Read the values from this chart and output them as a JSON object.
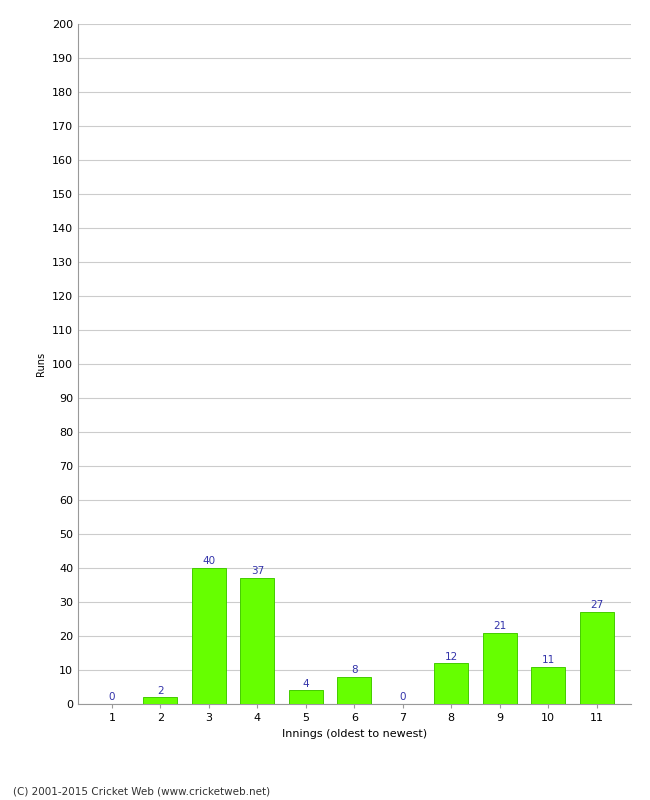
{
  "categories": [
    "1",
    "2",
    "3",
    "4",
    "5",
    "6",
    "7",
    "8",
    "9",
    "10",
    "11"
  ],
  "values": [
    0,
    2,
    40,
    37,
    4,
    8,
    0,
    12,
    21,
    11,
    27
  ],
  "bar_color": "#66ff00",
  "bar_edge_color": "#44cc00",
  "label_color": "#3333aa",
  "xlabel": "Innings (oldest to newest)",
  "ylabel": "Runs",
  "ylim": [
    0,
    200
  ],
  "yticks": [
    0,
    10,
    20,
    30,
    40,
    50,
    60,
    70,
    80,
    90,
    100,
    110,
    120,
    130,
    140,
    150,
    160,
    170,
    180,
    190,
    200
  ],
  "footer": "(C) 2001-2015 Cricket Web (www.cricketweb.net)",
  "background_color": "#ffffff",
  "grid_color": "#cccccc",
  "label_fontsize": 7.5,
  "tick_fontsize": 8,
  "xlabel_fontsize": 8,
  "ylabel_fontsize": 7,
  "footer_fontsize": 7.5
}
